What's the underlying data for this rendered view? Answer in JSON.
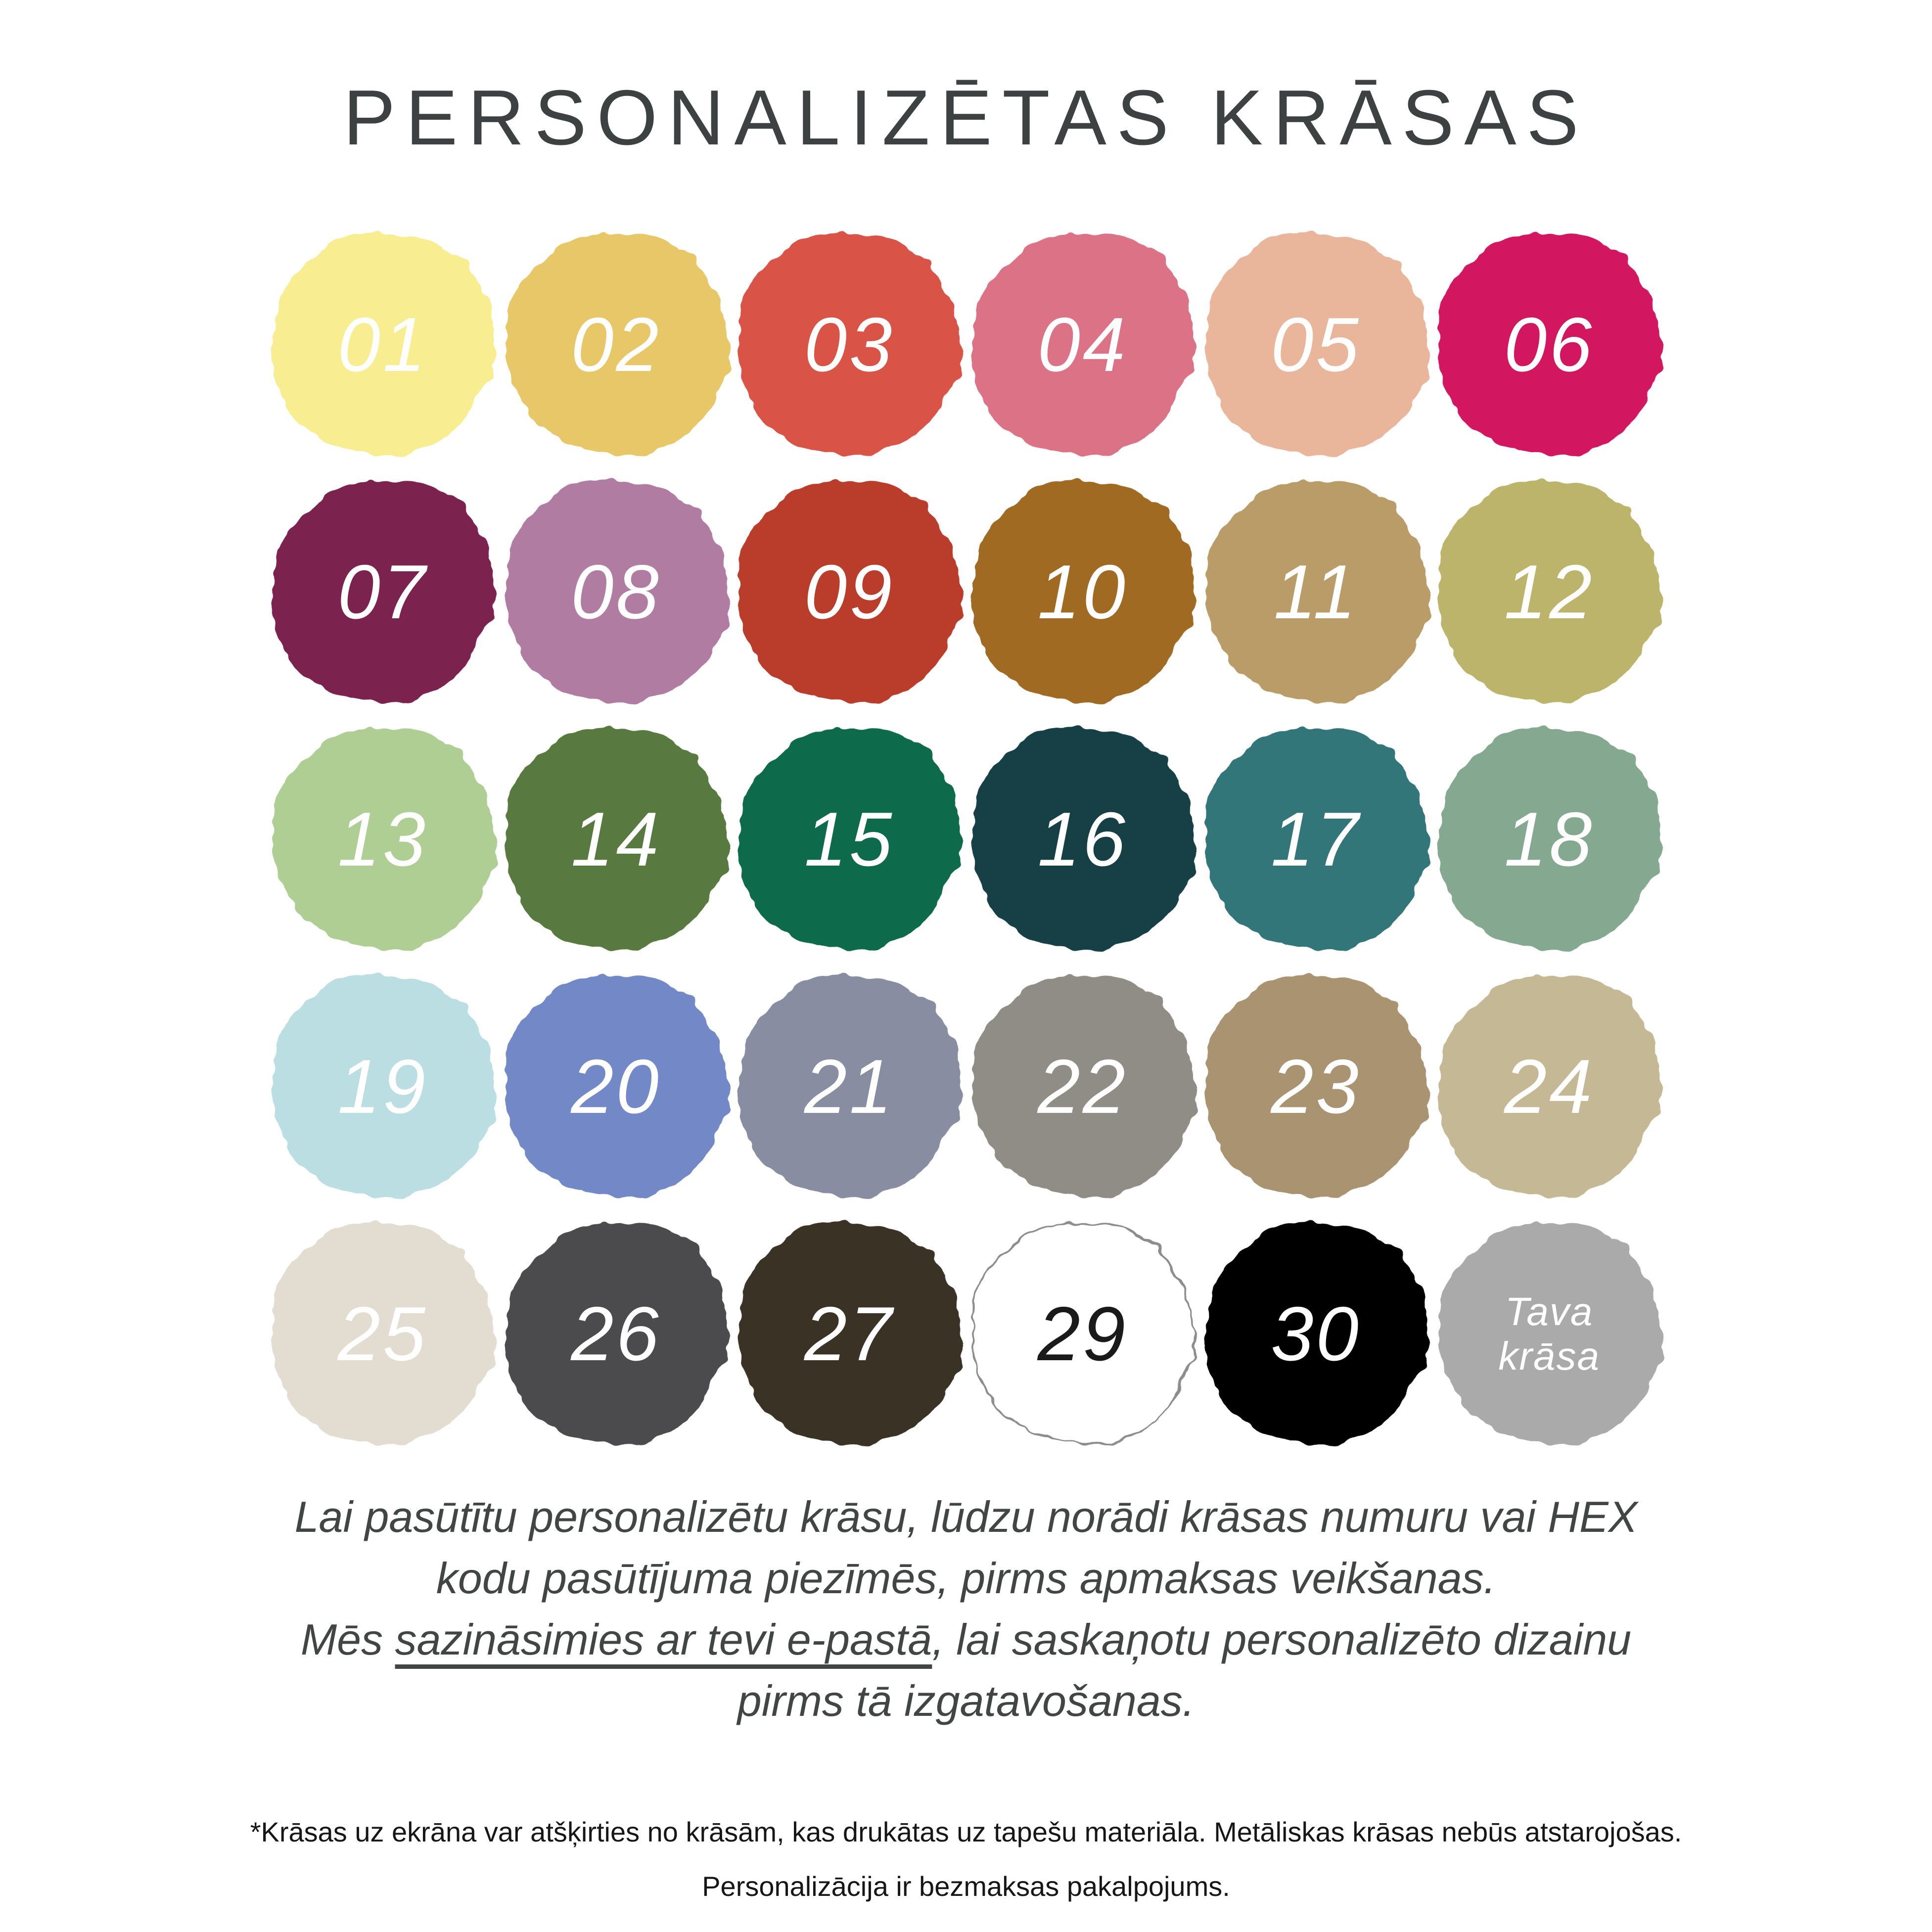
{
  "title": "PERSONALIZĒTAS KRĀSAS",
  "grid": {
    "swatches": [
      {
        "label": "01",
        "color": "#F8EE91",
        "text_color": "#FFFFFF"
      },
      {
        "label": "02",
        "color": "#E7C767",
        "text_color": "#FFFFFF"
      },
      {
        "label": "03",
        "color": "#DA5347",
        "text_color": "#FFFFFF"
      },
      {
        "label": "04",
        "color": "#DC7286",
        "text_color": "#FFFFFF"
      },
      {
        "label": "05",
        "color": "#EAB69B",
        "text_color": "#FFFFFF"
      },
      {
        "label": "06",
        "color": "#D31460",
        "text_color": "#FFFFFF"
      },
      {
        "label": "07",
        "color": "#7B2050",
        "text_color": "#FFFFFF"
      },
      {
        "label": "08",
        "color": "#B17CA1",
        "text_color": "#FFFFFF"
      },
      {
        "label": "09",
        "color": "#B93C2B",
        "text_color": "#FFFFFF"
      },
      {
        "label": "10",
        "color": "#A06A24",
        "text_color": "#FFFFFF"
      },
      {
        "label": "11",
        "color": "#B99C68",
        "text_color": "#FFFFFF"
      },
      {
        "label": "12",
        "color": "#BBB46A",
        "text_color": "#FFFFFF"
      },
      {
        "label": "13",
        "color": "#AECE94",
        "text_color": "#FFFFFF"
      },
      {
        "label": "14",
        "color": "#58793F",
        "text_color": "#FFFFFF"
      },
      {
        "label": "15",
        "color": "#0E6B4B",
        "text_color": "#FFFFFF"
      },
      {
        "label": "16",
        "color": "#183F44",
        "text_color": "#FFFFFF"
      },
      {
        "label": "17",
        "color": "#31767A",
        "text_color": "#FFFFFF"
      },
      {
        "label": "18",
        "color": "#85A890",
        "text_color": "#FFFFFF"
      },
      {
        "label": "19",
        "color": "#BADEE2",
        "text_color": "#FFFFFF"
      },
      {
        "label": "20",
        "color": "#7389C7",
        "text_color": "#FFFFFF"
      },
      {
        "label": "21",
        "color": "#888DA1",
        "text_color": "#FFFFFF"
      },
      {
        "label": "22",
        "color": "#8F8D86",
        "text_color": "#FFFFFF"
      },
      {
        "label": "23",
        "color": "#AA9371",
        "text_color": "#FFFFFF"
      },
      {
        "label": "24",
        "color": "#C5B995",
        "text_color": "#FFFFFF"
      },
      {
        "label": "25",
        "color": "#E2DDD0",
        "text_color": "#FFFFFF"
      },
      {
        "label": "26",
        "color": "#4C4C4E",
        "text_color": "#FFFFFF"
      },
      {
        "label": "27",
        "color": "#3A3227",
        "text_color": "#FFFFFF"
      },
      {
        "label": "29",
        "color": "#FFFFFF",
        "text_color": "#1A1A1A",
        "outline": "#8C8C8C"
      },
      {
        "label": "30",
        "color": "#030303",
        "text_color": "#FFFFFF"
      },
      {
        "label": "Tava krāsa",
        "color": "#ABAAAA",
        "text_color": "#FFFFFF"
      }
    ]
  },
  "note": {
    "line1": "Lai pasūtītu personalizētu krāsu, lūdzu norādi krāsas numuru vai HEX",
    "line2": "kodu pasūtījuma piezīmēs, pirms apmaksas veikšanas.",
    "line3_prefix": "Mēs ",
    "line3_underline": "sazināsimies ar tevi e-pastā",
    "line3_suffix": ", lai saskaņotu personalizēto dizainu",
    "line4": "pirms tā izgatavošanas."
  },
  "disclaimer": {
    "line1": "*Krāsas uz ekrāna var atšķirties no krāsām, kas drukātas uz tapešu materiāla. Metāliskas krāsas nebūs atstarojošas.",
    "line2": "Personalizācija ir bezmaksas pakalpojums."
  }
}
